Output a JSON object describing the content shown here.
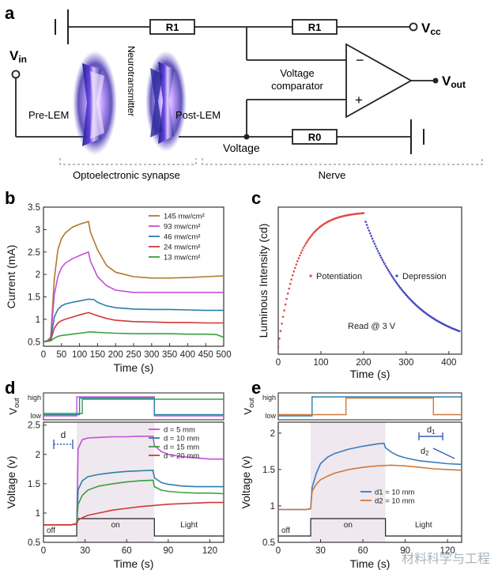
{
  "panel_labels": {
    "a": "a",
    "b": "b",
    "c": "c",
    "d": "d",
    "e": "e"
  },
  "circuit": {
    "r1_left": "R1",
    "r1_right": "R1",
    "r0": "R0",
    "vcc": "V",
    "vcc_sub": "cc",
    "vin": "V",
    "vin_sub": "in",
    "vout": "V",
    "vout_sub": "out",
    "pre_lem": "Pre-LEM",
    "post_lem": "Post-LEM",
    "neurotransmitter": "Neurotransmitter",
    "voltage_comparator_line1": "Voltage",
    "voltage_comparator_line2": "comparator",
    "voltage": "Voltage",
    "minus": "−",
    "plus": "+",
    "optoelectronic_synapse": "Optoelectronic synapse",
    "nerve": "Nerve"
  },
  "watermark": "材料科学与工程",
  "colors": {
    "brown": "#b07a2a",
    "magenta": "#c050d8",
    "teal": "#2a7fa8",
    "red": "#d03838",
    "green": "#3aa040",
    "orange": "#d07838",
    "blue": "#3a7ac0",
    "pot": "#e04848",
    "dep": "#4848c0"
  },
  "chart_data": [
    {
      "id": "b",
      "type": "line",
      "xlabel": "Time (s)",
      "ylabel": "Current (mA)",
      "xlim": [
        0,
        500
      ],
      "ylim": [
        0.4,
        3.5
      ],
      "xticks": [
        0,
        50,
        100,
        150,
        200,
        250,
        300,
        350,
        400,
        450,
        500
      ],
      "yticks": [
        0.5,
        1.0,
        1.5,
        2.0,
        2.5,
        3.0,
        3.5
      ],
      "legend_position": "top-right",
      "series": [
        {
          "name": "145 mw/cm²",
          "color": "#b07a2a",
          "x": [
            0,
            10,
            20,
            30,
            40,
            50,
            60,
            80,
            100,
            125,
            130,
            150,
            175,
            200,
            250,
            300,
            350,
            400,
            450,
            500
          ],
          "y": [
            0.5,
            0.52,
            0.6,
            1.9,
            2.55,
            2.8,
            2.92,
            3.05,
            3.12,
            3.18,
            2.95,
            2.55,
            2.2,
            2.05,
            1.95,
            1.92,
            1.92,
            1.93,
            1.95,
            1.97
          ]
        },
        {
          "name": "93  mw/cm²",
          "color": "#c050d8",
          "x": [
            0,
            10,
            20,
            30,
            40,
            50,
            60,
            80,
            100,
            125,
            130,
            150,
            175,
            200,
            250,
            300,
            350,
            400,
            450,
            500
          ],
          "y": [
            0.5,
            0.52,
            0.57,
            1.55,
            1.95,
            2.15,
            2.25,
            2.35,
            2.42,
            2.5,
            2.3,
            1.95,
            1.75,
            1.65,
            1.6,
            1.6,
            1.6,
            1.6,
            1.6,
            1.6
          ]
        },
        {
          "name": "46  mw/cm²",
          "color": "#2a7fa8",
          "x": [
            0,
            10,
            20,
            30,
            40,
            50,
            60,
            80,
            100,
            125,
            140,
            150,
            175,
            200,
            250,
            300,
            350,
            400,
            450,
            500
          ],
          "y": [
            0.5,
            0.52,
            0.55,
            1.05,
            1.22,
            1.3,
            1.34,
            1.38,
            1.41,
            1.45,
            1.44,
            1.38,
            1.3,
            1.26,
            1.23,
            1.22,
            1.22,
            1.21,
            1.2,
            1.2
          ]
        },
        {
          "name": "24  mw/cm²",
          "color": "#d03838",
          "x": [
            0,
            10,
            20,
            30,
            40,
            50,
            60,
            80,
            100,
            125,
            150,
            175,
            200,
            250,
            300,
            350,
            400,
            450,
            500
          ],
          "y": [
            0.5,
            0.51,
            0.53,
            0.8,
            0.92,
            0.97,
            1.0,
            1.05,
            1.1,
            1.15,
            1.08,
            1.02,
            0.98,
            0.95,
            0.94,
            0.93,
            0.93,
            0.92,
            0.92
          ]
        },
        {
          "name": "13  mw/cm²",
          "color": "#3aa040",
          "x": [
            0,
            10,
            20,
            30,
            40,
            50,
            60,
            80,
            100,
            130,
            150,
            175,
            200,
            250,
            300,
            350,
            400,
            450,
            480,
            500
          ],
          "y": [
            0.5,
            0.51,
            0.52,
            0.58,
            0.62,
            0.64,
            0.65,
            0.67,
            0.69,
            0.72,
            0.71,
            0.7,
            0.69,
            0.68,
            0.68,
            0.68,
            0.67,
            0.67,
            0.66,
            0.6
          ]
        }
      ]
    },
    {
      "id": "c",
      "type": "scatter",
      "xlabel": "Time (s)",
      "ylabel": "Luminous Intensity (cd)",
      "xlim": [
        0,
        430
      ],
      "ylim": [
        0,
        1
      ],
      "xticks": [
        0,
        100,
        200,
        300,
        400
      ],
      "yticks_hidden": true,
      "annotation": "Read @ 3 V",
      "legend_position": "center",
      "series": [
        {
          "name": "Potentiation",
          "color": "#e04848",
          "x_start": 0,
          "x_end": 200,
          "n": 72,
          "y_start": 0.05,
          "y_end": 0.97,
          "tau": 45
        },
        {
          "name": "Depression",
          "color": "#4848c0",
          "x_start": 205,
          "x_end": 425,
          "n": 85,
          "y_start": 0.9,
          "y_end": 0.04,
          "tau": 110
        }
      ]
    },
    {
      "id": "d",
      "type": "line",
      "xlabel": "Time (s)",
      "ylabel": "Voltage (v)",
      "xlim": [
        0,
        130
      ],
      "ylim": [
        0.5,
        2.55
      ],
      "xticks": [
        0,
        30,
        60,
        90,
        120
      ],
      "yticks": [
        0.5,
        1.0,
        1.5,
        2.0,
        2.5
      ],
      "legend_position": "top-right",
      "diagram_label": "d",
      "light_labels": {
        "off": "off",
        "on": "on",
        "light": "Light"
      },
      "light_on_range": [
        24,
        80
      ],
      "vout_label": "V",
      "vout_sub": "out",
      "vout_high": "high",
      "vout_low": "low",
      "vout_series": [
        {
          "color": "#c050d8",
          "x": [
            0,
            24,
            24,
            80,
            80,
            130
          ],
          "level": [
            0,
            0,
            1,
            1,
            0,
            0
          ]
        },
        {
          "color": "#2a7fa8",
          "x": [
            0,
            26,
            26,
            80,
            80,
            130
          ],
          "level": [
            0,
            0,
            1,
            1,
            0,
            0
          ]
        },
        {
          "color": "#3aa040",
          "x": [
            0,
            28,
            28,
            130
          ],
          "level": [
            0,
            0,
            1,
            1
          ]
        }
      ],
      "series": [
        {
          "name": "d = 5  mm",
          "color": "#c050d8",
          "x": [
            0,
            20,
            24,
            25,
            28,
            32,
            40,
            50,
            60,
            70,
            79,
            80,
            85,
            90,
            100,
            110,
            120,
            130
          ],
          "y": [
            0.8,
            0.8,
            0.82,
            2.1,
            2.25,
            2.28,
            2.29,
            2.3,
            2.3,
            2.31,
            2.31,
            2.15,
            2.05,
            2.0,
            1.96,
            1.94,
            1.92,
            1.92
          ]
        },
        {
          "name": "d = 10  mm",
          "color": "#2a7fa8",
          "x": [
            0,
            20,
            24,
            25,
            28,
            32,
            40,
            50,
            60,
            70,
            79,
            80,
            85,
            90,
            100,
            110,
            120,
            130
          ],
          "y": [
            0.8,
            0.8,
            0.82,
            1.4,
            1.55,
            1.62,
            1.66,
            1.69,
            1.71,
            1.72,
            1.73,
            1.6,
            1.52,
            1.49,
            1.46,
            1.45,
            1.45,
            1.45
          ]
        },
        {
          "name": "d = 15  mm",
          "color": "#3aa040",
          "x": [
            0,
            20,
            24,
            25,
            28,
            32,
            40,
            50,
            60,
            70,
            79,
            80,
            85,
            90,
            100,
            110,
            120,
            130
          ],
          "y": [
            0.8,
            0.8,
            0.82,
            1.15,
            1.3,
            1.39,
            1.46,
            1.5,
            1.53,
            1.55,
            1.56,
            1.45,
            1.39,
            1.37,
            1.35,
            1.34,
            1.34,
            1.33
          ]
        },
        {
          "name": "d = 20  mm",
          "color": "#d03838",
          "x": [
            0,
            20,
            24,
            25,
            28,
            32,
            40,
            50,
            60,
            70,
            80,
            90,
            100,
            110,
            120,
            130
          ],
          "y": [
            0.8,
            0.8,
            0.81,
            0.88,
            0.92,
            0.96,
            1.0,
            1.05,
            1.08,
            1.11,
            1.13,
            1.15,
            1.16,
            1.17,
            1.18,
            1.18
          ]
        }
      ]
    },
    {
      "id": "e",
      "type": "line",
      "xlabel": "Time (s)",
      "ylabel": "Voltage (v)",
      "xlim": [
        0,
        130
      ],
      "ylim": [
        0.5,
        2.15
      ],
      "xticks": [
        0,
        30,
        60,
        90,
        120
      ],
      "yticks": [
        0.5,
        1.0,
        1.5,
        2.0
      ],
      "legend_position": "bottom-right",
      "diagram_labels": {
        "d1": "d",
        "d1_sub": "1",
        "d2": "d",
        "d2_sub": "2"
      },
      "light_labels": {
        "off": "off",
        "on": "on",
        "light": "Light"
      },
      "light_on_range": [
        23,
        76
      ],
      "vout_label": "V",
      "vout_sub": "out",
      "vout_high": "high",
      "vout_low": "low",
      "vout_series": [
        {
          "color": "#2a7fa8",
          "x": [
            0,
            24,
            24,
            130
          ],
          "level": [
            0,
            0,
            1,
            1
          ]
        },
        {
          "color": "#d07838",
          "x": [
            0,
            48,
            48,
            110,
            110,
            130
          ],
          "level": [
            0,
            0,
            1,
            1,
            0,
            0
          ]
        }
      ],
      "series": [
        {
          "name": "d1 = 10 mm",
          "color": "#3a7ac0",
          "x": [
            0,
            20,
            23,
            24,
            27,
            30,
            35,
            40,
            50,
            60,
            70,
            75,
            76,
            80,
            85,
            90,
            100,
            110,
            120,
            130
          ],
          "y": [
            0.95,
            0.95,
            0.96,
            1.25,
            1.45,
            1.58,
            1.67,
            1.72,
            1.78,
            1.82,
            1.85,
            1.86,
            1.8,
            1.74,
            1.69,
            1.66,
            1.62,
            1.6,
            1.58,
            1.57
          ]
        },
        {
          "name": "d2 = 10 mm",
          "color": "#d07838",
          "x": [
            0,
            20,
            23,
            24,
            27,
            30,
            35,
            40,
            50,
            60,
            70,
            80,
            90,
            100,
            110,
            120,
            130
          ],
          "y": [
            0.95,
            0.95,
            0.96,
            1.2,
            1.3,
            1.36,
            1.41,
            1.45,
            1.5,
            1.53,
            1.55,
            1.56,
            1.55,
            1.53,
            1.51,
            1.5,
            1.49
          ]
        }
      ]
    }
  ]
}
